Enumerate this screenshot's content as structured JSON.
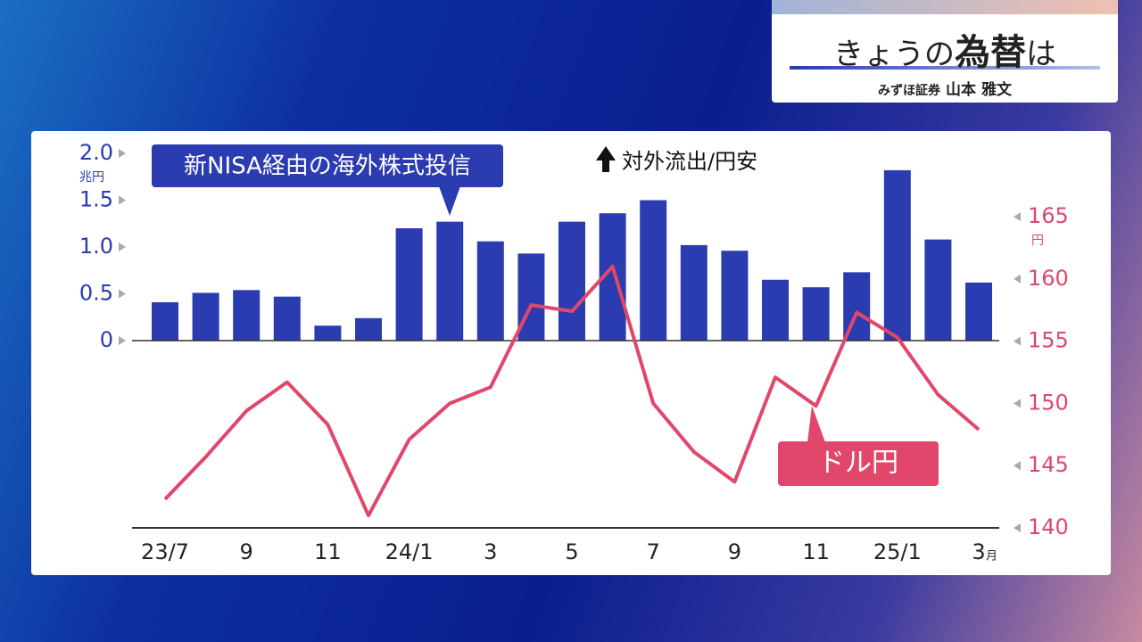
{
  "header": {
    "title_parts": [
      "きょうの",
      "為替",
      "は"
    ],
    "company": "みずほ証券",
    "person": "山本 雅文"
  },
  "chart_data": {
    "type": "bar-line",
    "categories": [
      "23/7",
      null,
      "9",
      null,
      "11",
      null,
      "24/1",
      null,
      "3",
      null,
      "5",
      null,
      "7",
      null,
      "9",
      null,
      "11",
      null,
      "25/1",
      null,
      "3"
    ],
    "x_unit": "月",
    "series": [
      {
        "name": "新NISA経由の海外株式投信",
        "type": "bar",
        "color": "#2b3bb0",
        "values": [
          0.41,
          0.51,
          0.54,
          0.47,
          0.16,
          0.24,
          1.2,
          1.27,
          1.06,
          0.93,
          1.27,
          1.36,
          1.5,
          1.02,
          0.96,
          0.65,
          0.57,
          0.73,
          1.82,
          1.08,
          0.62
        ]
      },
      {
        "name": "ドル円",
        "type": "line",
        "axis": "y2",
        "color": "#e0476a",
        "values": [
          142.3,
          145.7,
          149.4,
          151.7,
          148.3,
          141.0,
          147.1,
          150.0,
          151.3,
          157.9,
          157.4,
          161.0,
          150.0,
          146.1,
          143.7,
          152.1,
          149.8,
          157.3,
          155.3,
          150.7,
          147.9
        ]
      }
    ],
    "ylim": [
      0,
      2.0
    ],
    "yticks": [
      0,
      0.5,
      {
        "value": 1,
        "label": "1.0"
      },
      1.5,
      {
        "value": 2,
        "label": "2.0"
      }
    ],
    "y_unit": "兆円",
    "y2lim": [
      140,
      165
    ],
    "y2ticks": [
      140,
      145,
      150,
      155,
      160,
      165
    ],
    "y2_unit": "円",
    "annotation": "対外流出/円安"
  }
}
